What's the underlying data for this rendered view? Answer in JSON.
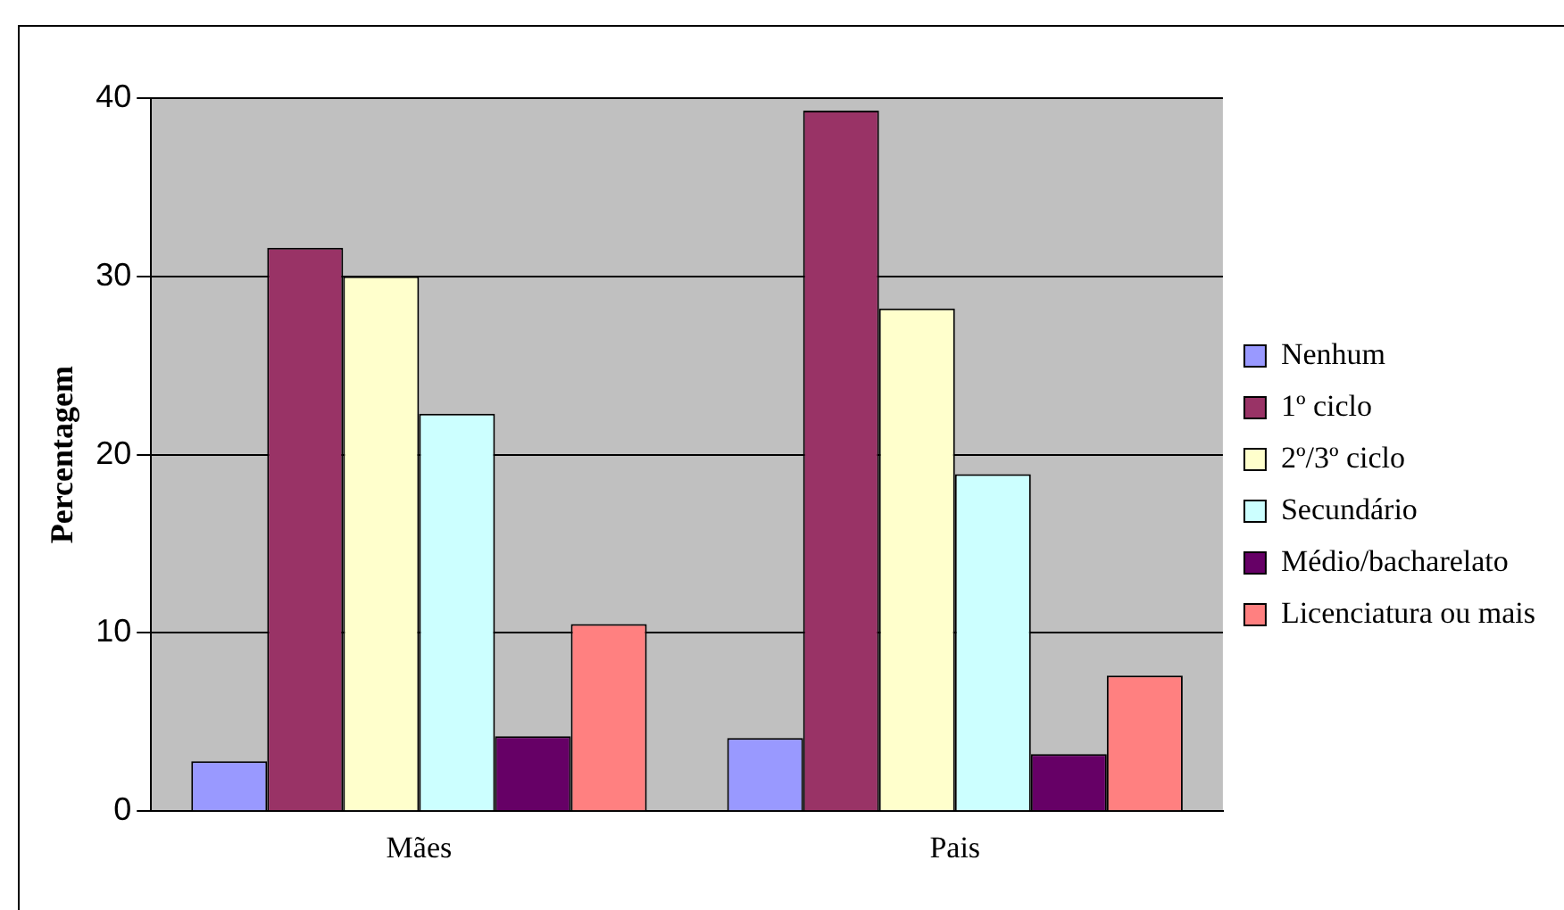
{
  "chart_data": {
    "type": "bar",
    "ylabel": "Percentagem",
    "categories": [
      "Mães",
      "Pais"
    ],
    "series": [
      {
        "name": "Nenhum",
        "color": "#9999ff",
        "values": [
          2.8,
          4.1
        ]
      },
      {
        "name": "1º ciclo",
        "color": "#993366",
        "values": [
          31.6,
          39.3
        ]
      },
      {
        "name": "2º/3º ciclo",
        "color": "#ffffcc",
        "values": [
          30.0,
          28.2
        ]
      },
      {
        "name": "Secundário",
        "color": "#ccffff",
        "values": [
          22.3,
          18.9
        ]
      },
      {
        "name": "Médio/bacharelato",
        "color": "#660066",
        "values": [
          4.2,
          3.2
        ]
      },
      {
        "name": "Licenciatura ou mais",
        "color": "#ff8080",
        "values": [
          10.5,
          7.6
        ]
      }
    ],
    "ylim": [
      0,
      40
    ],
    "yticks": [
      0,
      10,
      20,
      30,
      40
    ],
    "grid": "y",
    "legend": "right"
  }
}
